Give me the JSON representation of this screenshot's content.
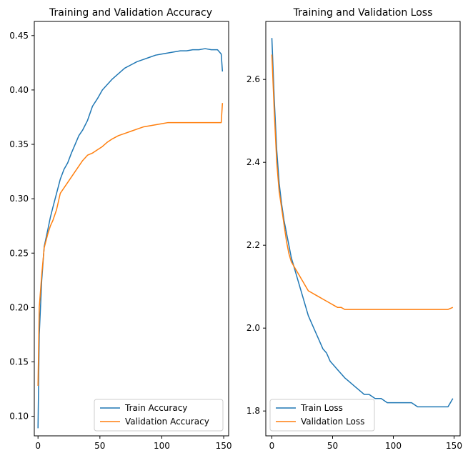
{
  "chart_data": [
    {
      "type": "line",
      "title": "Training and Validation Accuracy",
      "xlabel": "",
      "ylabel": "",
      "xlim": [
        -3,
        154
      ],
      "ylim": [
        0.082,
        0.463
      ],
      "xticks": [
        0,
        50,
        100,
        150
      ],
      "yticks": [
        0.1,
        0.15,
        0.2,
        0.25,
        0.3,
        0.35,
        0.4,
        0.45
      ],
      "ytick_labels": [
        "0.10",
        "0.15",
        "0.20",
        "0.25",
        "0.30",
        "0.35",
        "0.40",
        "0.45"
      ],
      "grid": false,
      "legend_position": "lower right",
      "series": [
        {
          "name": "Train Accuracy",
          "color": "#1f77b4",
          "points": [
            [
              0,
              0.089
            ],
            [
              1,
              0.175
            ],
            [
              3,
              0.225
            ],
            [
              5,
              0.256
            ],
            [
              8,
              0.272
            ],
            [
              10,
              0.283
            ],
            [
              12,
              0.292
            ],
            [
              15,
              0.305
            ],
            [
              18,
              0.318
            ],
            [
              21,
              0.327
            ],
            [
              24,
              0.333
            ],
            [
              27,
              0.342
            ],
            [
              30,
              0.35
            ],
            [
              33,
              0.358
            ],
            [
              36,
              0.363
            ],
            [
              40,
              0.372
            ],
            [
              44,
              0.385
            ],
            [
              48,
              0.392
            ],
            [
              52,
              0.4
            ],
            [
              56,
              0.405
            ],
            [
              60,
              0.41
            ],
            [
              65,
              0.415
            ],
            [
              70,
              0.42
            ],
            [
              75,
              0.423
            ],
            [
              80,
              0.426
            ],
            [
              85,
              0.428
            ],
            [
              90,
              0.43
            ],
            [
              95,
              0.432
            ],
            [
              100,
              0.433
            ],
            [
              105,
              0.434
            ],
            [
              110,
              0.435
            ],
            [
              115,
              0.436
            ],
            [
              120,
              0.436
            ],
            [
              125,
              0.437
            ],
            [
              130,
              0.437
            ],
            [
              135,
              0.438
            ],
            [
              140,
              0.437
            ],
            [
              145,
              0.437
            ],
            [
              148,
              0.433
            ],
            [
              149,
              0.417
            ]
          ]
        },
        {
          "name": "Validation Accuracy",
          "color": "#ff7f0e",
          "points": [
            [
              0,
              0.128
            ],
            [
              1,
              0.2
            ],
            [
              3,
              0.23
            ],
            [
              5,
              0.255
            ],
            [
              8,
              0.268
            ],
            [
              10,
              0.275
            ],
            [
              12,
              0.28
            ],
            [
              15,
              0.29
            ],
            [
              18,
              0.305
            ],
            [
              21,
              0.31
            ],
            [
              24,
              0.315
            ],
            [
              27,
              0.32
            ],
            [
              30,
              0.325
            ],
            [
              33,
              0.33
            ],
            [
              36,
              0.335
            ],
            [
              40,
              0.34
            ],
            [
              44,
              0.342
            ],
            [
              48,
              0.345
            ],
            [
              52,
              0.348
            ],
            [
              56,
              0.352
            ],
            [
              60,
              0.355
            ],
            [
              65,
              0.358
            ],
            [
              70,
              0.36
            ],
            [
              75,
              0.362
            ],
            [
              80,
              0.364
            ],
            [
              85,
              0.366
            ],
            [
              90,
              0.367
            ],
            [
              95,
              0.368
            ],
            [
              100,
              0.369
            ],
            [
              105,
              0.37
            ],
            [
              110,
              0.37
            ],
            [
              115,
              0.37
            ],
            [
              120,
              0.37
            ],
            [
              125,
              0.37
            ],
            [
              130,
              0.37
            ],
            [
              135,
              0.37
            ],
            [
              140,
              0.37
            ],
            [
              145,
              0.37
            ],
            [
              148,
              0.37
            ],
            [
              149,
              0.388
            ]
          ]
        }
      ]
    },
    {
      "type": "line",
      "title": "Training and Validation Loss",
      "xlabel": "",
      "ylabel": "",
      "xlim": [
        -5,
        155
      ],
      "ylim": [
        1.74,
        2.74
      ],
      "xticks": [
        0,
        50,
        100,
        150
      ],
      "yticks": [
        1.8,
        2.0,
        2.2,
        2.4,
        2.6
      ],
      "ytick_labels": [
        "1.8",
        "2.0",
        "2.2",
        "2.4",
        "2.6"
      ],
      "grid": false,
      "legend_position": "lower left",
      "series": [
        {
          "name": "Train Loss",
          "color": "#1f77b4",
          "points": [
            [
              0,
              2.7
            ],
            [
              2,
              2.55
            ],
            [
              4,
              2.43
            ],
            [
              6,
              2.35
            ],
            [
              8,
              2.3
            ],
            [
              10,
              2.26
            ],
            [
              12,
              2.23
            ],
            [
              14,
              2.2
            ],
            [
              16,
              2.17
            ],
            [
              18,
              2.15
            ],
            [
              20,
              2.13
            ],
            [
              22,
              2.11
            ],
            [
              24,
              2.09
            ],
            [
              26,
              2.07
            ],
            [
              28,
              2.05
            ],
            [
              30,
              2.03
            ],
            [
              33,
              2.01
            ],
            [
              36,
              1.99
            ],
            [
              39,
              1.97
            ],
            [
              42,
              1.95
            ],
            [
              45,
              1.94
            ],
            [
              48,
              1.92
            ],
            [
              51,
              1.91
            ],
            [
              54,
              1.9
            ],
            [
              57,
              1.89
            ],
            [
              60,
              1.88
            ],
            [
              64,
              1.87
            ],
            [
              68,
              1.86
            ],
            [
              72,
              1.85
            ],
            [
              76,
              1.84
            ],
            [
              80,
              1.84
            ],
            [
              85,
              1.83
            ],
            [
              90,
              1.83
            ],
            [
              95,
              1.82
            ],
            [
              100,
              1.82
            ],
            [
              105,
              1.82
            ],
            [
              110,
              1.82
            ],
            [
              115,
              1.82
            ],
            [
              120,
              1.81
            ],
            [
              125,
              1.81
            ],
            [
              130,
              1.81
            ],
            [
              135,
              1.81
            ],
            [
              140,
              1.81
            ],
            [
              145,
              1.81
            ],
            [
              149,
              1.83
            ]
          ]
        },
        {
          "name": "Validation Loss",
          "color": "#ff7f0e",
          "points": [
            [
              0,
              2.66
            ],
            [
              2,
              2.52
            ],
            [
              4,
              2.4
            ],
            [
              6,
              2.33
            ],
            [
              8,
              2.29
            ],
            [
              10,
              2.25
            ],
            [
              12,
              2.21
            ],
            [
              14,
              2.18
            ],
            [
              16,
              2.16
            ],
            [
              18,
              2.15
            ],
            [
              20,
              2.14
            ],
            [
              22,
              2.13
            ],
            [
              24,
              2.12
            ],
            [
              26,
              2.11
            ],
            [
              28,
              2.1
            ],
            [
              30,
              2.09
            ],
            [
              33,
              2.085
            ],
            [
              36,
              2.08
            ],
            [
              39,
              2.075
            ],
            [
              42,
              2.07
            ],
            [
              45,
              2.065
            ],
            [
              48,
              2.06
            ],
            [
              51,
              2.055
            ],
            [
              54,
              2.05
            ],
            [
              57,
              2.05
            ],
            [
              60,
              2.045
            ],
            [
              64,
              2.045
            ],
            [
              68,
              2.045
            ],
            [
              72,
              2.045
            ],
            [
              76,
              2.045
            ],
            [
              80,
              2.045
            ],
            [
              85,
              2.045
            ],
            [
              90,
              2.045
            ],
            [
              95,
              2.045
            ],
            [
              100,
              2.045
            ],
            [
              105,
              2.045
            ],
            [
              110,
              2.045
            ],
            [
              115,
              2.045
            ],
            [
              120,
              2.045
            ],
            [
              125,
              2.045
            ],
            [
              130,
              2.045
            ],
            [
              135,
              2.045
            ],
            [
              140,
              2.045
            ],
            [
              145,
              2.045
            ],
            [
              149,
              2.05
            ]
          ]
        }
      ]
    }
  ]
}
